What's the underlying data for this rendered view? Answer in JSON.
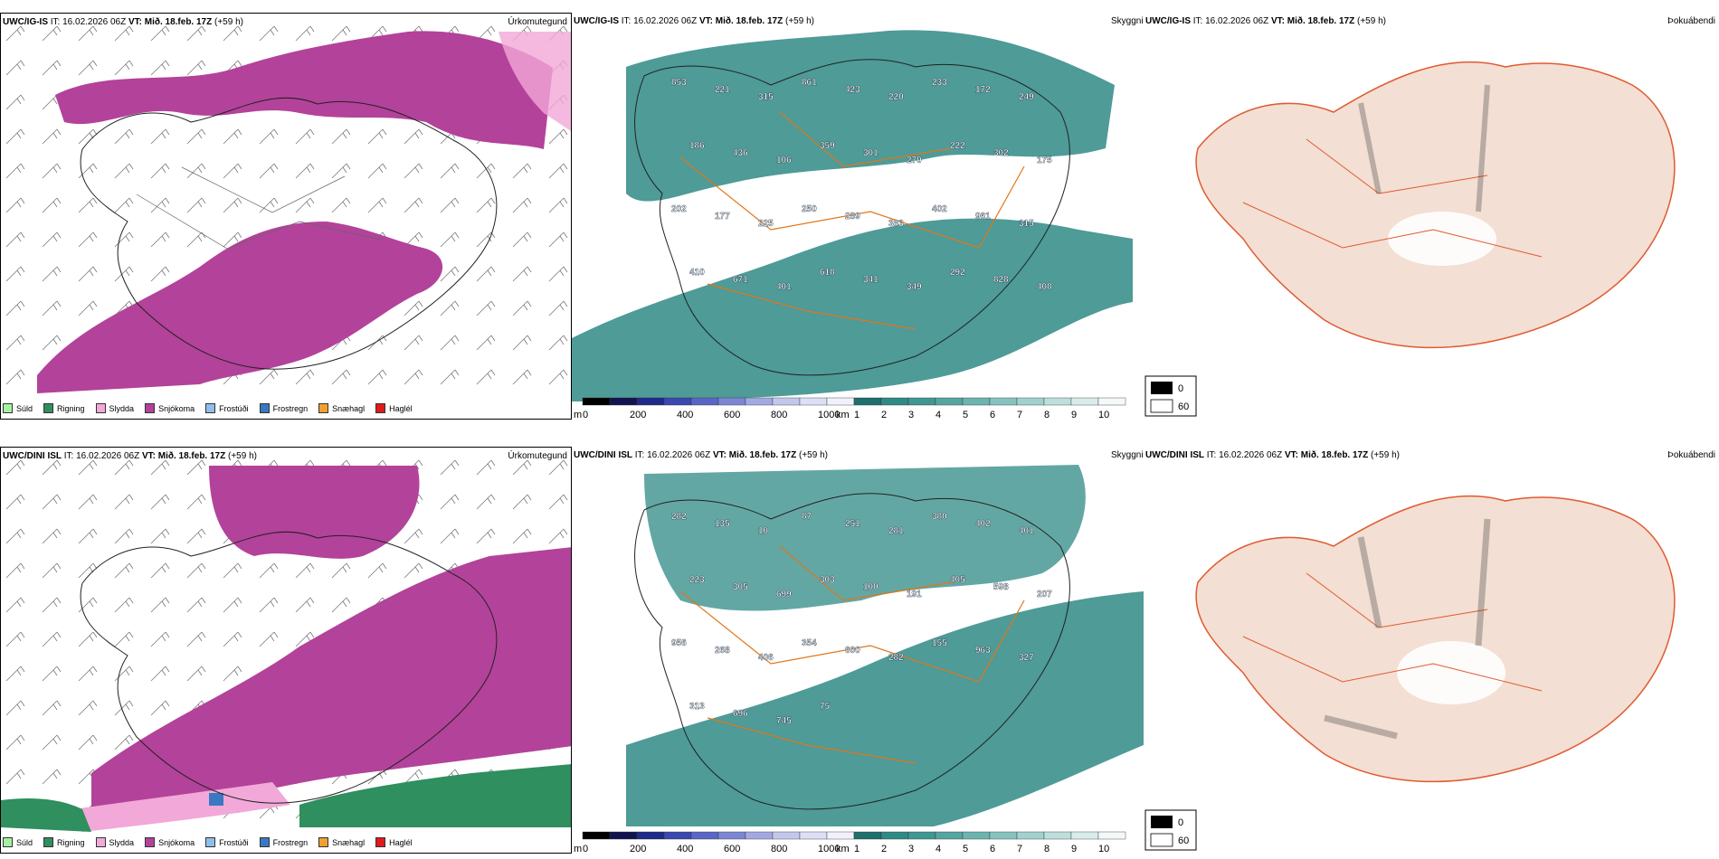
{
  "rows": [
    {
      "model": "UWC/IG-IS",
      "it_label": "IT:",
      "it_value": "16.02.2026 06Z",
      "vt_label": "VT:",
      "vt_value": "Mið. 18.feb. 17Z",
      "lead": "(+59 h)",
      "panels": {
        "precip": "Úrkomutegund",
        "visibility": "Skyggni",
        "fog": "Þokuábendi"
      },
      "cloud_numbers": [
        "853",
        "221",
        "315",
        "861",
        "423",
        "220",
        "233",
        "172",
        "249",
        "186",
        "436",
        "106",
        "359",
        "301",
        "270",
        "222",
        "302",
        "175",
        "202",
        "177",
        "225",
        "250",
        "289",
        "383",
        "402",
        "961",
        "315",
        "410",
        "671",
        "401",
        "618",
        "341",
        "349",
        "292",
        "828",
        "408"
      ]
    },
    {
      "model": "UWC/DINI ISL",
      "it_label": "IT:",
      "it_value": "16.02.2026 06Z",
      "vt_label": "VT:",
      "vt_value": "Mið. 18.feb. 17Z",
      "lead": "(+59 h)",
      "panels": {
        "precip": "Úrkomutegund",
        "visibility": "Skyggni",
        "fog": "Þokuábendi"
      },
      "cloud_numbers": [
        "282",
        "135",
        "10",
        "87",
        "251",
        "281",
        "380",
        "402",
        "401",
        "223",
        "305",
        "699",
        "303",
        "100",
        "191",
        "405",
        "598",
        "207",
        "956",
        "268",
        "406",
        "354",
        "600",
        "282",
        "155",
        "963",
        "327",
        "313",
        "696",
        "745",
        "75"
      ]
    }
  ],
  "precip_legend": [
    {
      "label": "Súld",
      "color": "#a6f0a0"
    },
    {
      "label": "Rigning",
      "color": "#2f8f5e"
    },
    {
      "label": "Slydda",
      "color": "#f2a8d8"
    },
    {
      "label": "Snjókoma",
      "color": "#b3429a"
    },
    {
      "label": "Frostúði",
      "color": "#8fbfe8"
    },
    {
      "label": "Frostregn",
      "color": "#3a78c2"
    },
    {
      "label": "Snæhagl",
      "color": "#f0a030"
    },
    {
      "label": "Haglél",
      "color": "#e21a1a"
    }
  ],
  "cloud_base_scale": {
    "unit": "m",
    "ticks": [
      "0",
      "200",
      "400",
      "600",
      "800",
      "1000"
    ]
  },
  "visibility_scale": {
    "unit": "km",
    "ticks": [
      "1",
      "2",
      "3",
      "4",
      "5",
      "6",
      "7",
      "8",
      "9",
      "10"
    ]
  },
  "fog_scale": {
    "ticks": [
      "0",
      "60"
    ]
  },
  "colors": {
    "snow": "#b3429a",
    "rain": "#2f8f5e",
    "sleet": "#f2a8d8",
    "teal": "#2f8a86",
    "road": "#e0761a",
    "land": "#f3dfd3",
    "roadred": "#e05a30"
  }
}
